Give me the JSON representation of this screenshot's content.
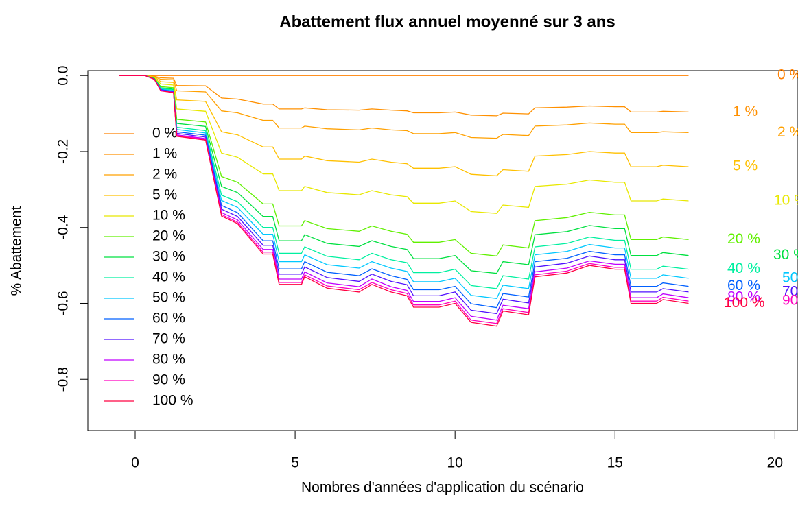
{
  "chart_data": {
    "type": "line",
    "title": "Abattement flux annuel moyenné sur 3 ans",
    "x_label": "Nombres d'années d'application du scénario",
    "y_label": "% Abattement",
    "xlim": [
      -1.48,
      20.7
    ],
    "ylim": [
      -0.935,
      0.013
    ],
    "xticks": [
      0,
      5,
      10,
      15,
      20
    ],
    "yticks": [
      {
        "value": 0,
        "label": "0.0"
      },
      -0.2,
      -0.4,
      -0.6,
      -0.8
    ],
    "grid": false,
    "x": [
      -0.5,
      0.3,
      0.6,
      0.8,
      1.2,
      1.3,
      2.2,
      2.7,
      3.2,
      4.0,
      4.3,
      4.5,
      5.2,
      5.3,
      6.0,
      7.0,
      7.4,
      8.0,
      8.5,
      8.7,
      9.5,
      10.0,
      10.5,
      11.3,
      11.5,
      12.3,
      12.5,
      13.5,
      14.2,
      15.0,
      15.3,
      15.5,
      16.3,
      16.5,
      17.3
    ],
    "series": [
      {
        "name": "0 %",
        "color": "#ff8000",
        "values": [
          0,
          0,
          0,
          0,
          0,
          0,
          0,
          0,
          0,
          0,
          0,
          0,
          0,
          0,
          0,
          0,
          0,
          0,
          0,
          0,
          0,
          0,
          0,
          0,
          0,
          0,
          0,
          0,
          0,
          0,
          0,
          0,
          0,
          0,
          0
        ]
      },
      {
        "name": "1 %",
        "color": "#ff9000",
        "values": [
          0,
          0,
          -0.002,
          -0.006,
          -0.007,
          -0.026,
          -0.027,
          -0.059,
          -0.062,
          -0.075,
          -0.075,
          -0.088,
          -0.088,
          -0.085,
          -0.09,
          -0.091,
          -0.088,
          -0.091,
          -0.093,
          -0.098,
          -0.098,
          -0.096,
          -0.104,
          -0.106,
          -0.099,
          -0.101,
          -0.085,
          -0.083,
          -0.08,
          -0.082,
          -0.082,
          -0.096,
          -0.096,
          -0.094,
          -0.096
        ]
      },
      {
        "name": "2 %",
        "color": "#ffa000",
        "values": [
          0,
          0,
          -0.003,
          -0.01,
          -0.011,
          -0.04,
          -0.043,
          -0.093,
          -0.098,
          -0.118,
          -0.118,
          -0.138,
          -0.138,
          -0.133,
          -0.14,
          -0.143,
          -0.138,
          -0.143,
          -0.145,
          -0.153,
          -0.153,
          -0.15,
          -0.163,
          -0.165,
          -0.155,
          -0.158,
          -0.133,
          -0.13,
          -0.125,
          -0.128,
          -0.128,
          -0.15,
          -0.15,
          -0.148,
          -0.15
        ]
      },
      {
        "name": "5 %",
        "color": "#ffc000",
        "values": [
          0,
          0,
          -0.004,
          -0.016,
          -0.018,
          -0.064,
          -0.068,
          -0.148,
          -0.156,
          -0.188,
          -0.188,
          -0.22,
          -0.22,
          -0.212,
          -0.224,
          -0.228,
          -0.22,
          -0.228,
          -0.232,
          -0.244,
          -0.244,
          -0.24,
          -0.26,
          -0.264,
          -0.248,
          -0.252,
          -0.212,
          -0.208,
          -0.2,
          -0.204,
          -0.204,
          -0.24,
          -0.24,
          -0.236,
          -0.24
        ]
      },
      {
        "name": "10 %",
        "color": "#e8e800",
        "values": [
          0,
          0,
          -0.006,
          -0.022,
          -0.025,
          -0.088,
          -0.094,
          -0.204,
          -0.215,
          -0.259,
          -0.259,
          -0.303,
          -0.303,
          -0.292,
          -0.308,
          -0.314,
          -0.303,
          -0.314,
          -0.319,
          -0.336,
          -0.336,
          -0.33,
          -0.358,
          -0.363,
          -0.341,
          -0.347,
          -0.292,
          -0.286,
          -0.275,
          -0.281,
          -0.281,
          -0.33,
          -0.33,
          -0.325,
          -0.33
        ]
      },
      {
        "name": "20 %",
        "color": "#60f000",
        "values": [
          0,
          0,
          -0.007,
          -0.029,
          -0.032,
          -0.115,
          -0.122,
          -0.266,
          -0.281,
          -0.338,
          -0.338,
          -0.396,
          -0.396,
          -0.382,
          -0.403,
          -0.41,
          -0.396,
          -0.41,
          -0.418,
          -0.439,
          -0.439,
          -0.432,
          -0.468,
          -0.475,
          -0.446,
          -0.454,
          -0.382,
          -0.374,
          -0.36,
          -0.367,
          -0.367,
          -0.432,
          -0.432,
          -0.425,
          -0.432
        ]
      },
      {
        "name": "30 %",
        "color": "#00e040",
        "values": [
          0,
          0,
          -0.008,
          -0.032,
          -0.036,
          -0.126,
          -0.134,
          -0.292,
          -0.308,
          -0.371,
          -0.371,
          -0.435,
          -0.435,
          -0.419,
          -0.442,
          -0.45,
          -0.435,
          -0.45,
          -0.458,
          -0.482,
          -0.482,
          -0.474,
          -0.514,
          -0.521,
          -0.49,
          -0.498,
          -0.419,
          -0.411,
          -0.395,
          -0.403,
          -0.403,
          -0.474,
          -0.474,
          -0.466,
          -0.474
        ]
      },
      {
        "name": "40 %",
        "color": "#00f0a0",
        "values": [
          0,
          0,
          -0.009,
          -0.034,
          -0.038,
          -0.136,
          -0.145,
          -0.315,
          -0.332,
          -0.4,
          -0.4,
          -0.468,
          -0.468,
          -0.451,
          -0.476,
          -0.485,
          -0.468,
          -0.485,
          -0.493,
          -0.519,
          -0.519,
          -0.51,
          -0.553,
          -0.561,
          -0.527,
          -0.536,
          -0.451,
          -0.442,
          -0.425,
          -0.434,
          -0.434,
          -0.51,
          -0.51,
          -0.502,
          -0.51
        ]
      },
      {
        "name": "50 %",
        "color": "#00c8ff",
        "values": [
          0,
          0,
          -0.009,
          -0.036,
          -0.04,
          -0.142,
          -0.151,
          -0.329,
          -0.347,
          -0.418,
          -0.418,
          -0.49,
          -0.49,
          -0.472,
          -0.498,
          -0.507,
          -0.49,
          -0.507,
          -0.516,
          -0.543,
          -0.543,
          -0.534,
          -0.579,
          -0.587,
          -0.552,
          -0.561,
          -0.472,
          -0.463,
          -0.445,
          -0.454,
          -0.454,
          -0.534,
          -0.534,
          -0.525,
          -0.534
        ]
      },
      {
        "name": "60 %",
        "color": "#0060ff",
        "values": [
          0,
          0,
          -0.009,
          -0.037,
          -0.042,
          -0.148,
          -0.157,
          -0.342,
          -0.361,
          -0.435,
          -0.435,
          -0.509,
          -0.509,
          -0.49,
          -0.518,
          -0.527,
          -0.509,
          -0.527,
          -0.537,
          -0.564,
          -0.564,
          -0.555,
          -0.601,
          -0.611,
          -0.574,
          -0.583,
          -0.49,
          -0.481,
          -0.463,
          -0.472,
          -0.472,
          -0.555,
          -0.555,
          -0.546,
          -0.555
        ]
      },
      {
        "name": "70 %",
        "color": "#5010ff",
        "values": [
          0,
          0,
          -0.01,
          -0.038,
          -0.043,
          -0.152,
          -0.162,
          -0.352,
          -0.371,
          -0.447,
          -0.447,
          -0.523,
          -0.523,
          -0.504,
          -0.532,
          -0.542,
          -0.523,
          -0.542,
          -0.551,
          -0.58,
          -0.58,
          -0.57,
          -0.618,
          -0.627,
          -0.589,
          -0.599,
          -0.504,
          -0.494,
          -0.475,
          -0.485,
          -0.485,
          -0.57,
          -0.57,
          -0.561,
          -0.57
        ]
      },
      {
        "name": "80 %",
        "color": "#c000ff",
        "values": [
          0,
          0,
          -0.01,
          -0.039,
          -0.044,
          -0.156,
          -0.166,
          -0.361,
          -0.38,
          -0.458,
          -0.458,
          -0.536,
          -0.536,
          -0.517,
          -0.546,
          -0.556,
          -0.536,
          -0.556,
          -0.566,
          -0.595,
          -0.595,
          -0.585,
          -0.634,
          -0.644,
          -0.605,
          -0.614,
          -0.517,
          -0.507,
          -0.488,
          -0.497,
          -0.497,
          -0.585,
          -0.585,
          -0.575,
          -0.585
        ]
      },
      {
        "name": "90 %",
        "color": "#ff00c0",
        "values": [
          0,
          0,
          -0.01,
          -0.04,
          -0.045,
          -0.158,
          -0.168,
          -0.366,
          -0.386,
          -0.465,
          -0.465,
          -0.545,
          -0.545,
          -0.525,
          -0.554,
          -0.564,
          -0.545,
          -0.564,
          -0.574,
          -0.604,
          -0.604,
          -0.594,
          -0.644,
          -0.653,
          -0.614,
          -0.624,
          -0.525,
          -0.515,
          -0.495,
          -0.505,
          -0.505,
          -0.594,
          -0.594,
          -0.584,
          -0.594
        ]
      },
      {
        "name": "100 %",
        "color": "#ff0040",
        "values": [
          0,
          0,
          -0.01,
          -0.04,
          -0.045,
          -0.16,
          -0.17,
          -0.37,
          -0.39,
          -0.47,
          -0.47,
          -0.55,
          -0.55,
          -0.53,
          -0.56,
          -0.57,
          -0.55,
          -0.57,
          -0.58,
          -0.61,
          -0.61,
          -0.6,
          -0.65,
          -0.66,
          -0.62,
          -0.63,
          -0.53,
          -0.52,
          -0.5,
          -0.51,
          -0.51,
          -0.6,
          -0.6,
          -0.59,
          -0.6
        ]
      }
    ]
  }
}
